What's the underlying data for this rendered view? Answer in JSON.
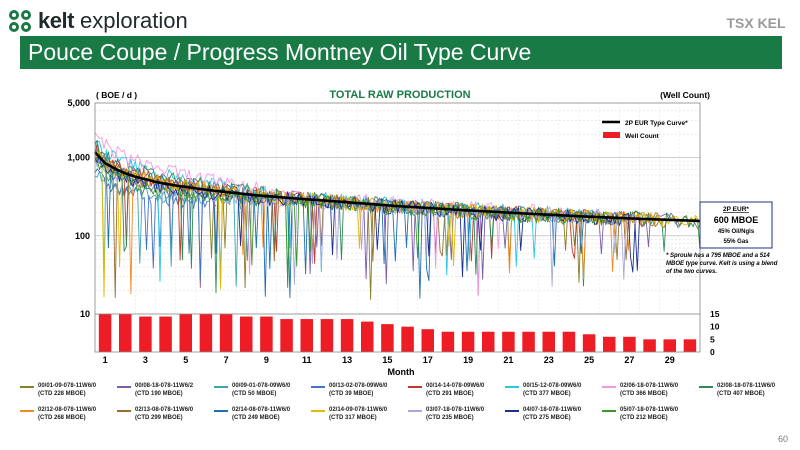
{
  "brand": {
    "logo_word": "kelt",
    "logo_suffix": "exploration",
    "tsx_label": "TSX KEL",
    "accent": "#1a7a46"
  },
  "page": {
    "title": "Pouce Coupe / Progress Montney Oil Type Curve",
    "number": "60"
  },
  "chart_data": {
    "type": "line",
    "title": "TOTAL RAW PRODUCTION",
    "ylabel_left": "( BOE / d )",
    "ylabel_right": "(Well Count)",
    "xlabel": "Month",
    "y_scale": "log",
    "ylim": [
      10,
      5000
    ],
    "y_ticks": [
      "5,000",
      "1,000",
      "100",
      "10"
    ],
    "y2_ticks": [
      "15",
      "10",
      "5",
      "0"
    ],
    "y2lim": [
      0,
      15
    ],
    "x_range": [
      0,
      30
    ],
    "x_ticks": [
      "1",
      "3",
      "5",
      "7",
      "9",
      "11",
      "13",
      "15",
      "17",
      "19",
      "21",
      "23",
      "25",
      "27",
      "29"
    ],
    "legend_top": [
      {
        "label": "2P EUR Type Curve*",
        "color": "#000000",
        "kind": "line"
      },
      {
        "label": "Well Count",
        "color": "#ee1c25",
        "kind": "bar"
      }
    ],
    "type_curve": {
      "x": [
        0,
        0.5,
        1,
        1.5,
        2,
        3,
        4,
        5,
        6,
        8,
        10,
        12,
        15,
        18,
        21,
        24,
        27,
        30
      ],
      "y": [
        1180,
        850,
        720,
        630,
        570,
        490,
        440,
        405,
        375,
        330,
        300,
        275,
        240,
        215,
        195,
        178,
        165,
        155
      ]
    },
    "well_count": {
      "months": [
        1,
        2,
        3,
        4,
        5,
        6,
        7,
        8,
        9,
        10,
        11,
        12,
        13,
        14,
        15,
        16,
        17,
        18,
        19,
        20,
        21,
        22,
        23,
        24,
        25,
        26,
        27,
        28,
        29,
        30
      ],
      "values": [
        15,
        15,
        14,
        14,
        15,
        15,
        15,
        14,
        14,
        13,
        13,
        13,
        13,
        12,
        11,
        10,
        9,
        8,
        8,
        8,
        8,
        8,
        8,
        8,
        7,
        6,
        6,
        5,
        5,
        5
      ]
    },
    "eur_box": {
      "title": "2P EUR*",
      "value": "600 MBOE",
      "line1": "45% Oil/Ngls",
      "line2": "55% Gas"
    },
    "footnote": "* Sproule has a 795 MBOE and a 514 MBOE type curve. Kelt is using a blend of the two curves.",
    "series": [
      {
        "name": "00/01-09-078-11W6/0",
        "ctd": "(CTD 228 MBOE)",
        "color": "#8b7d2b",
        "start": 1100,
        "months": 30
      },
      {
        "name": "00/08-18-078-11W6/2",
        "ctd": "(CTD 190 MBOE)",
        "color": "#7b5ea8",
        "start": 1350,
        "months": 29
      },
      {
        "name": "00/09-01-078-09W6/0",
        "ctd": "(CTD 50 MBOE)",
        "color": "#3aa6b5",
        "start": 700,
        "months": 8
      },
      {
        "name": "00/13-02-078-09W6/0",
        "ctd": "(CTD 39 MBOE)",
        "color": "#4472c4",
        "start": 650,
        "months": 6
      },
      {
        "name": "00/14-14-078-09W6/0",
        "ctd": "(CTD 291 MBOE)",
        "color": "#c0392b",
        "start": 1300,
        "months": 27
      },
      {
        "name": "00/15-12-078-09W6/0",
        "ctd": "(CTD 377 MBOE)",
        "color": "#2ec4e8",
        "start": 1700,
        "months": 25
      },
      {
        "name": "02/06-18-078-11W6/0",
        "ctd": "(CTD 366 MBOE)",
        "color": "#f29ad8",
        "start": 2100,
        "months": 25
      },
      {
        "name": "02/08-18-078-11W6/0",
        "ctd": "(CTD 407 MBOE)",
        "color": "#2e8b57",
        "start": 1500,
        "months": 30
      },
      {
        "name": "02/12-08-078-11W6/0",
        "ctd": "(CTD 268 MBOE)",
        "color": "#f08a24",
        "start": 1150,
        "months": 28
      },
      {
        "name": "02/13-08-078-11W6/0",
        "ctd": "(CTD 299 MBOE)",
        "color": "#9c6b30",
        "start": 1250,
        "months": 28
      },
      {
        "name": "02/14-08-078-11W6/0",
        "ctd": "(CTD 249 MBOE)",
        "color": "#1f6fb2",
        "start": 1000,
        "months": 26
      },
      {
        "name": "02/14-09-078-11W6/0",
        "ctd": "(CTD 317 MBOE)",
        "color": "#e6b800",
        "start": 1200,
        "months": 30
      },
      {
        "name": "03/07-18-078-11W6/0",
        "ctd": "(CTD 235 MBOE)",
        "color": "#a9a9d9",
        "start": 950,
        "months": 27
      },
      {
        "name": "04/07-18-078-11W6/0",
        "ctd": "(CTD 275 MBOE)",
        "color": "#1c2f8c",
        "start": 1050,
        "months": 27
      },
      {
        "name": "05/07-18-078-11W6/0",
        "ctd": "(CTD 212 MBOE)",
        "color": "#3b9a2a",
        "start": 900,
        "months": 26
      }
    ]
  }
}
